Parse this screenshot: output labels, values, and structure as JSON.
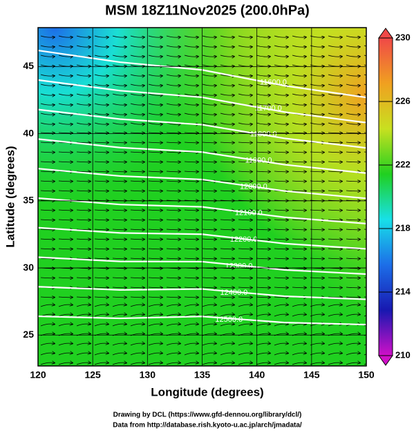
{
  "chart_data": {
    "type": "map",
    "title": "MSM 18Z11Nov2025 (200.0hPa)",
    "x_label": "Longitude (degrees)",
    "y_label": "Latitude  (degrees)",
    "xlim": [
      120,
      150
    ],
    "xticks": [
      120,
      125,
      130,
      135,
      140,
      145,
      150
    ],
    "ylim": [
      22.7,
      47.9
    ],
    "yticks": [
      25,
      30,
      35,
      40,
      45
    ],
    "colorbar": {
      "lim": [
        210,
        230
      ],
      "ticks": [
        210,
        214,
        218,
        222,
        226,
        230
      ],
      "colormap": [
        "#d010c8",
        "#1818b0",
        "#1c6ee8",
        "#18e0e8",
        "#20d020",
        "#c8e020",
        "#f0a020",
        "#f04848"
      ]
    },
    "contour_labels": [
      "11600.0",
      "11700.0",
      "11800.0",
      "11900.0",
      "12000.0",
      "12100.0",
      "12200.0",
      "12300.0",
      "12400.0",
      "12500.0"
    ],
    "footer": [
      "Drawing by DCL (https://www.gfd-dennou.org/library/dcl/)",
      "Data from http://database.rish.kyoto-u.ac.jp/arch/jmadata/"
    ]
  }
}
